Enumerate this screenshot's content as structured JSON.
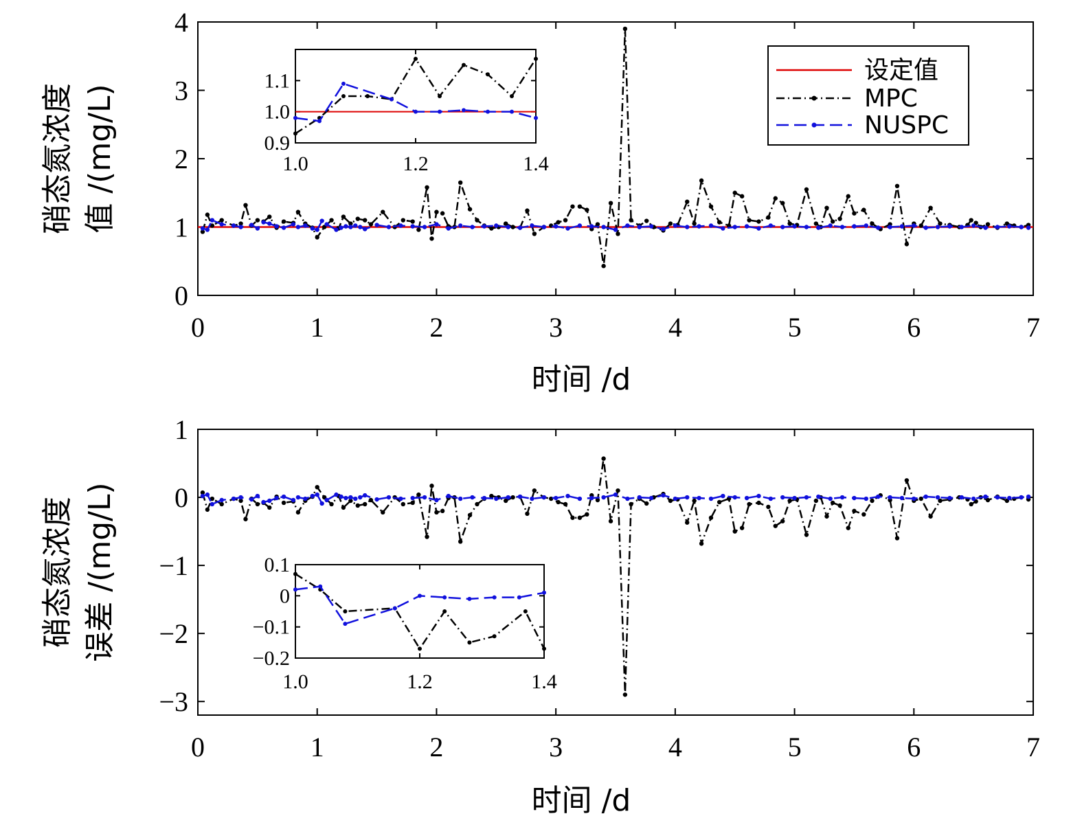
{
  "chart_data": [
    {
      "type": "line",
      "ylabel_line1": "硝态氮浓度",
      "ylabel_line2": "值 /(mg/L)",
      "xlabel": "时间 /d",
      "xlim": [
        0,
        7
      ],
      "ylim": [
        0,
        4
      ],
      "xticks": [
        "0",
        "1",
        "2",
        "3",
        "4",
        "5",
        "6",
        "7"
      ],
      "yticks": [
        "0",
        "1",
        "2",
        "3",
        "4"
      ],
      "legend": {
        "position": "top-right",
        "entries": [
          "设定值",
          "MPC",
          "NUSPC"
        ]
      },
      "colors": {
        "setpoint": "#dd0000",
        "mpc": "#000000",
        "nuspc": "#1010dd"
      },
      "setpoint": 1.0,
      "series": [
        {
          "name": "MPC",
          "x": [
            0.04,
            0.08,
            0.12,
            0.2,
            0.3,
            0.36,
            0.4,
            0.45,
            0.5,
            0.55,
            0.6,
            0.66,
            0.72,
            0.8,
            0.84,
            0.9,
            0.96,
            1.0,
            1.06,
            1.12,
            1.18,
            1.22,
            1.28,
            1.34,
            1.4,
            1.45,
            1.55,
            1.65,
            1.72,
            1.8,
            1.85,
            1.92,
            1.96,
            2.0,
            2.05,
            2.1,
            2.15,
            2.2,
            2.28,
            2.34,
            2.4,
            2.46,
            2.52,
            2.58,
            2.64,
            2.7,
            2.76,
            2.82,
            2.9,
            2.96,
            3.02,
            3.08,
            3.14,
            3.2,
            3.26,
            3.3,
            3.35,
            3.4,
            3.46,
            3.52,
            3.58,
            3.63,
            3.7,
            3.76,
            3.82,
            3.9,
            3.96,
            4.02,
            4.1,
            4.16,
            4.22,
            4.3,
            4.37,
            4.45,
            4.5,
            4.56,
            4.62,
            4.7,
            4.78,
            4.84,
            4.9,
            4.96,
            5.02,
            5.1,
            5.18,
            5.22,
            5.27,
            5.32,
            5.38,
            5.45,
            5.5,
            5.58,
            5.65,
            5.72,
            5.8,
            5.86,
            5.94,
            6.0,
            6.06,
            6.14,
            6.22,
            6.3,
            6.38,
            6.45,
            6.48,
            6.52,
            6.56,
            6.62,
            6.7,
            6.78,
            6.84,
            6.9,
            6.96
          ],
          "values": [
            0.93,
            1.18,
            1.02,
            1.1,
            1.02,
            1.05,
            1.32,
            1.02,
            1.1,
            1.08,
            1.15,
            0.99,
            1.08,
            1.06,
            1.22,
            1.05,
            0.99,
            0.85,
            1.0,
            1.1,
            0.98,
            1.15,
            1.05,
            1.12,
            1.1,
            1.04,
            1.22,
            1.0,
            1.1,
            1.08,
            0.96,
            1.58,
            0.83,
            1.22,
            1.2,
            1.01,
            1.0,
            1.65,
            1.26,
            1.1,
            1.02,
            0.98,
            1.0,
            1.05,
            1.0,
            0.99,
            1.24,
            0.9,
            1.0,
            1.02,
            1.07,
            1.1,
            1.3,
            1.3,
            1.25,
            0.97,
            1.04,
            0.43,
            1.35,
            0.9,
            3.9,
            1.1,
            1.02,
            1.09,
            1.0,
            0.95,
            1.05,
            1.03,
            1.37,
            1.05,
            1.68,
            1.3,
            1.07,
            1.02,
            1.5,
            1.45,
            1.1,
            1.08,
            1.14,
            1.42,
            1.35,
            1.05,
            1.03,
            1.55,
            1.05,
            1.0,
            1.28,
            1.08,
            1.12,
            1.45,
            1.2,
            1.25,
            1.05,
            0.97,
            1.04,
            1.6,
            0.75,
            1.05,
            1.02,
            1.28,
            1.05,
            1.03,
            1.0,
            1.03,
            1.1,
            1.06,
            1.0,
            1.04,
            0.99,
            1.05,
            1.02,
            1.0,
            1.03
          ]
        },
        {
          "name": "NUSPC",
          "x": [
            0.04,
            0.08,
            0.12,
            0.2,
            0.3,
            0.36,
            0.45,
            0.5,
            0.55,
            0.6,
            0.66,
            0.72,
            0.8,
            0.84,
            0.9,
            0.96,
            1.0,
            1.04,
            1.08,
            1.16,
            1.2,
            1.24,
            1.28,
            1.32,
            1.36,
            1.4,
            1.5,
            1.6,
            1.7,
            1.8,
            1.9,
            2.0,
            2.1,
            2.2,
            2.3,
            2.4,
            2.5,
            2.6,
            2.7,
            2.8,
            2.9,
            3.0,
            3.1,
            3.2,
            3.3,
            3.4,
            3.5,
            3.6,
            3.7,
            3.8,
            3.9,
            4.0,
            4.1,
            4.2,
            4.3,
            4.4,
            4.5,
            4.6,
            4.7,
            4.8,
            4.9,
            5.0,
            5.1,
            5.2,
            5.3,
            5.4,
            5.5,
            5.6,
            5.7,
            5.8,
            5.9,
            6.0,
            6.1,
            6.2,
            6.3,
            6.4,
            6.5,
            6.6,
            6.7,
            6.8,
            6.9,
            6.96
          ],
          "values": [
            0.98,
            0.96,
            1.1,
            1.04,
            1.02,
            1.0,
            1.03,
            0.98,
            1.07,
            1.05,
            1.01,
            0.99,
            1.04,
            1.0,
            1.02,
            0.98,
            0.96,
            1.09,
            1.04,
            0.96,
            0.99,
            1.01,
            1.0,
            1.02,
            1.0,
            0.97,
            1.03,
            1.0,
            1.02,
            1.01,
            1.0,
            1.04,
            0.98,
            1.02,
            1.0,
            1.01,
            1.02,
            1.0,
            0.99,
            1.02,
            1.0,
            1.01,
            0.98,
            1.02,
            1.01,
            1.0,
            0.96,
            1.02,
            1.0,
            1.01,
            0.97,
            1.02,
            1.0,
            1.01,
            1.02,
            0.98,
            1.0,
            1.01,
            0.98,
            1.02,
            1.0,
            1.01,
            1.0,
            0.99,
            1.02,
            1.0,
            1.01,
            1.02,
            0.99,
            1.0,
            1.01,
            1.02,
            0.99,
            1.0,
            1.01,
            1.0,
            1.02,
            0.99,
            1.0,
            1.01,
            1.0,
            0.99
          ]
        }
      ],
      "inset": {
        "xlim": [
          1.0,
          1.4
        ],
        "ylim": [
          0.9,
          1.2
        ],
        "xticks": [
          "1.0",
          "1.2",
          "1.4"
        ],
        "yticks": [
          "0.9",
          "1.0",
          "1.1"
        ],
        "mpc": {
          "x": [
            1.0,
            1.04,
            1.08,
            1.12,
            1.16,
            1.2,
            1.24,
            1.28,
            1.32,
            1.36,
            1.4
          ],
          "values": [
            0.93,
            0.98,
            1.05,
            1.05,
            1.04,
            1.17,
            1.05,
            1.15,
            1.12,
            1.05,
            1.17
          ]
        },
        "nuspc": {
          "x": [
            1.0,
            1.04,
            1.08,
            1.16,
            1.2,
            1.24,
            1.28,
            1.32,
            1.36,
            1.4
          ],
          "values": [
            0.98,
            0.97,
            1.09,
            1.04,
            1.0,
            1.0,
            1.005,
            1.0,
            1.0,
            0.98
          ]
        }
      }
    },
    {
      "type": "line",
      "ylabel_line1": "硝态氮浓度",
      "ylabel_line2": "误差 /(mg/L)",
      "xlabel": "时间 /d",
      "xlim": [
        0,
        7
      ],
      "ylim": [
        -3.2,
        1
      ],
      "xticks": [
        "0",
        "1",
        "2",
        "3",
        "4",
        "5",
        "6",
        "7"
      ],
      "yticks": [
        "1",
        "0",
        "−1",
        "−2",
        "−3"
      ],
      "colors": {
        "mpc": "#000000",
        "nuspc": "#1010dd"
      },
      "series": [
        {
          "name": "MPC",
          "error_of": "top"
        },
        {
          "name": "NUSPC",
          "error_of": "top"
        }
      ],
      "inset": {
        "xlim": [
          1.0,
          1.4
        ],
        "ylim": [
          -0.2,
          0.1
        ],
        "xticks": [
          "1.0",
          "1.2",
          "1.4"
        ],
        "yticks": [
          "0.1",
          "0",
          "−0.1",
          "−0.2"
        ],
        "mpc": {
          "x": [
            1.0,
            1.04,
            1.08,
            1.16,
            1.2,
            1.24,
            1.28,
            1.32,
            1.37,
            1.4
          ],
          "values": [
            0.07,
            0.02,
            -0.05,
            -0.04,
            -0.17,
            -0.05,
            -0.15,
            -0.13,
            -0.05,
            -0.17
          ]
        },
        "nuspc": {
          "x": [
            1.0,
            1.04,
            1.08,
            1.16,
            1.2,
            1.24,
            1.28,
            1.32,
            1.36,
            1.4
          ],
          "values": [
            0.02,
            0.03,
            -0.09,
            -0.04,
            0.0,
            -0.005,
            -0.01,
            -0.005,
            -0.005,
            0.01
          ]
        }
      }
    }
  ]
}
